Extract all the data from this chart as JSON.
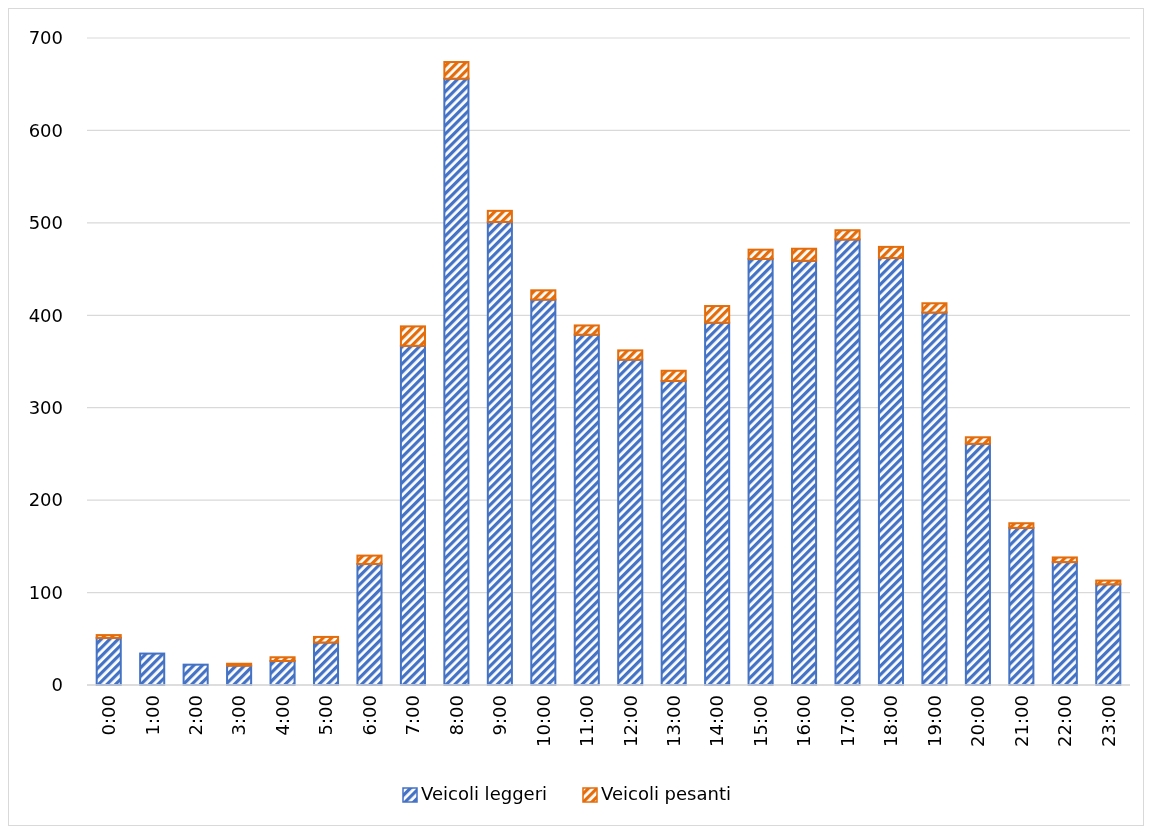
{
  "chart_data": {
    "type": "bar",
    "stacked": true,
    "categories": [
      "0:00",
      "1:00",
      "2:00",
      "3:00",
      "4:00",
      "5:00",
      "6:00",
      "7:00",
      "8:00",
      "9:00",
      "10:00",
      "11:00",
      "12:00",
      "13:00",
      "14:00",
      "15:00",
      "16:00",
      "17:00",
      "18:00",
      "19:00",
      "20:00",
      "21:00",
      "22:00",
      "23:00"
    ],
    "series": [
      {
        "name": "Veicoli leggeri",
        "color": "#4472c4",
        "values": [
          51,
          34,
          22,
          21,
          26,
          46,
          131,
          367,
          656,
          501,
          417,
          379,
          352,
          329,
          392,
          461,
          459,
          482,
          462,
          403,
          261,
          170,
          133,
          109
        ]
      },
      {
        "name": "Veicoli pesanti",
        "color": "#e46c0a",
        "values": [
          3,
          0,
          0,
          2,
          4,
          6,
          9,
          21,
          18,
          12,
          10,
          10,
          10,
          11,
          18,
          10,
          13,
          10,
          12,
          10,
          7,
          5,
          5,
          4
        ]
      }
    ],
    "ylim": [
      0,
      700
    ],
    "yticks": [
      0,
      100,
      200,
      300,
      400,
      500,
      600,
      700
    ],
    "grid": "y",
    "legend": "bottom"
  }
}
